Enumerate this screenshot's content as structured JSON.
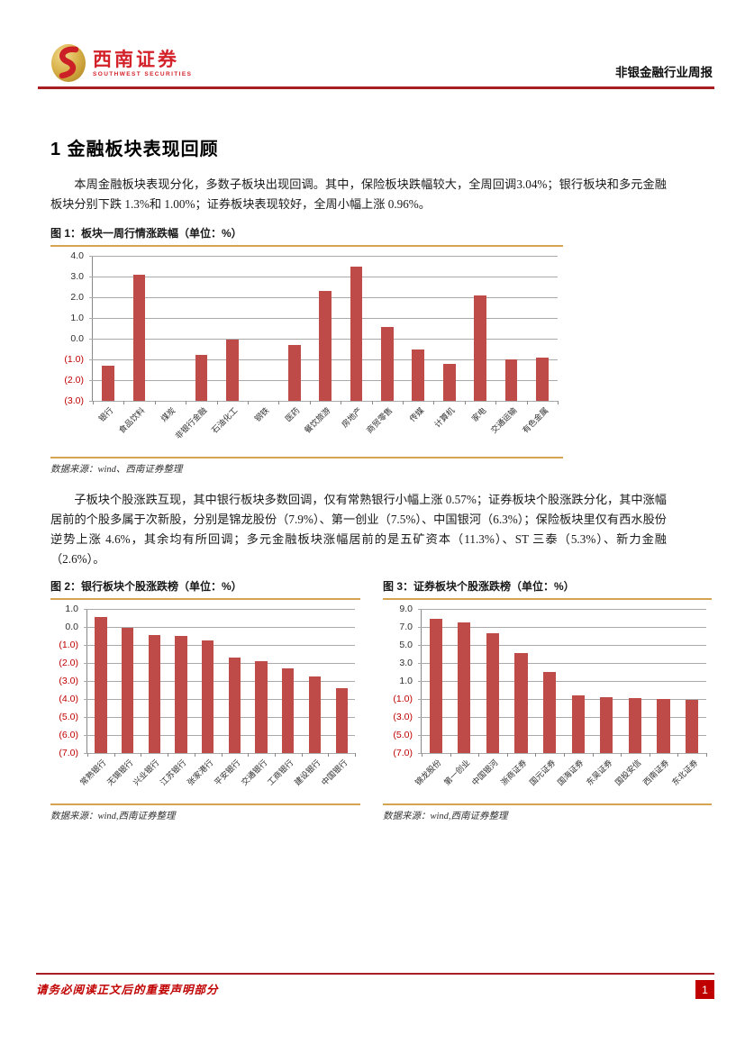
{
  "header": {
    "logo": {
      "brand_cn": "西南证券",
      "brand_en": "SOUTHWEST SECURITIES"
    },
    "report_type": "非银金融行业周报"
  },
  "section": {
    "title": "1 金融板块表现回顾",
    "paragraph1": "本周金融板块表现分化，多数子板块出现回调。其中，保险板块跌幅较大，全周回调3.04%；银行板块和多元金融板块分别下跌 1.3%和 1.00%；证券板块表现较好，全周小幅上涨 0.96%。",
    "paragraph2": "子板块个股涨跌互现，其中银行板块多数回调，仅有常熟银行小幅上涨 0.57%；证券板块个股涨跌分化，其中涨幅居前的个股多属于次新股，分别是锦龙股份（7.9%）、第一创业（7.5%）、中国银河（6.3%）；保险板块里仅有西水股份逆势上涨 4.6%，其余均有所回调；多元金融板块涨幅居前的是五矿资本（11.3%）、ST 三泰（5.3%）、新力金融（2.6%）。"
  },
  "figures": [
    {
      "caption": "图 1：板块一周行情涨跌幅（单位：%）",
      "source": "数据来源：wind、西南证券整理"
    },
    {
      "caption": "图 2：银行板块个股涨跌榜（单位：%）",
      "source": "数据来源：wind,西南证券整理"
    },
    {
      "caption": "图 3：证券板块个股涨跌榜（单位：%）",
      "source": "数据来源：wind,西南证券整理"
    }
  ],
  "chart_data": [
    {
      "type": "bar",
      "title": "板块一周行情涨跌幅（单位：%）",
      "categories": [
        "银行",
        "食品饮料",
        "煤炭",
        "非银行金融",
        "石油化工",
        "钢铁",
        "医药",
        "餐饮旅游",
        "房地产",
        "商贸零售",
        "传媒",
        "计算机",
        "家电",
        "交通运输",
        "有色金属"
      ],
      "values": [
        -1.3,
        3.1,
        null,
        -0.8,
        -0.05,
        null,
        -0.3,
        2.3,
        3.5,
        0.55,
        -0.5,
        -1.2,
        2.1,
        -1.0,
        -0.9
      ],
      "xlabel": "",
      "ylabel": "%",
      "ylim": [
        -3,
        4
      ],
      "yticks": [
        4,
        3,
        2,
        1,
        0,
        -1,
        -2,
        -3
      ],
      "grid": true,
      "legend": false,
      "bar_color": "#be4b48"
    },
    {
      "type": "bar",
      "title": "银行板块个股涨跌榜（单位：%）",
      "categories": [
        "常熟银行",
        "无锡银行",
        "兴业银行",
        "江苏银行",
        "张家港行",
        "平安银行",
        "交通银行",
        "工商银行",
        "建设银行",
        "中国银行"
      ],
      "values": [
        0.57,
        -0.05,
        -0.45,
        -0.5,
        -0.75,
        -1.7,
        -1.9,
        -2.3,
        -2.75,
        -3.4
      ],
      "xlabel": "",
      "ylabel": "%",
      "ylim": [
        -7,
        1
      ],
      "yticks": [
        1,
        0,
        -1,
        -2,
        -3,
        -4,
        -5,
        -6,
        -7
      ],
      "grid": true,
      "legend": false,
      "bar_color": "#be4b48"
    },
    {
      "type": "bar",
      "title": "证券板块个股涨跌榜（单位：%）",
      "categories": [
        "锦龙股份",
        "第一创业",
        "中国银河",
        "浙商证券",
        "国元证券",
        "国海证券",
        "东吴证券",
        "国投安信",
        "西南证券",
        "东北证券"
      ],
      "values": [
        7.9,
        7.5,
        6.3,
        4.1,
        2.0,
        -0.6,
        -0.75,
        -0.85,
        -0.95,
        -1.05
      ],
      "xlabel": "",
      "ylabel": "%",
      "ylim": [
        -7,
        9
      ],
      "yticks": [
        9,
        7,
        5,
        3,
        1,
        -1,
        -3,
        -5,
        -7
      ],
      "grid": true,
      "legend": false,
      "bar_color": "#be4b48"
    }
  ],
  "footer": {
    "disclaimer": "请务必阅读正文后的重要声明部分",
    "page_number": "1"
  },
  "colors": {
    "bar": "#be4b48",
    "figure_rule": "#d6a351",
    "brand_red": "#a81e22",
    "negative_tick": "#c00000",
    "page_badge": "#c00000"
  }
}
